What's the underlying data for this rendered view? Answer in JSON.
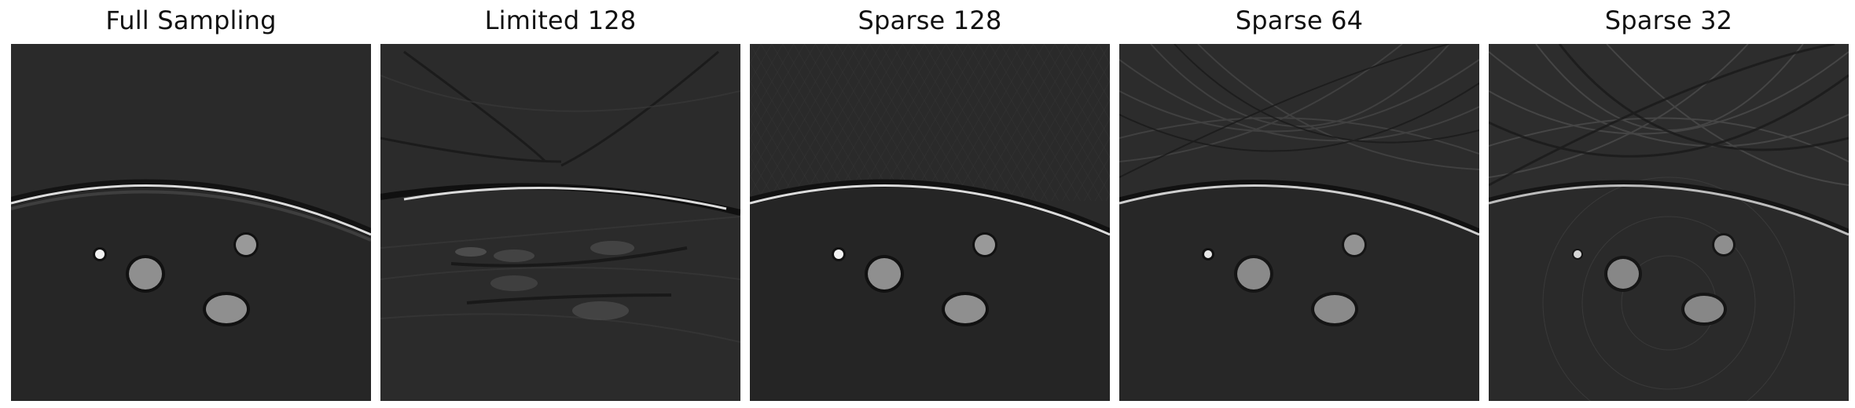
{
  "figure": {
    "panels": [
      {
        "id": "full-sampling",
        "title": "Full Sampling",
        "artifact": "none"
      },
      {
        "id": "limited-128",
        "title": "Limited 128",
        "artifact": "limited-view"
      },
      {
        "id": "sparse-128",
        "title": "Sparse 128",
        "artifact": "sparse-view"
      },
      {
        "id": "sparse-64",
        "title": "Sparse 64",
        "artifact": "sparse-view"
      },
      {
        "id": "sparse-32",
        "title": "Sparse 32",
        "artifact": "sparse-view"
      }
    ]
  },
  "colors": {
    "background": "#2a2a2a",
    "boundary": "#d8d8d8",
    "inclusion": "#8f8f8f",
    "dot": "#f2f2f2"
  }
}
